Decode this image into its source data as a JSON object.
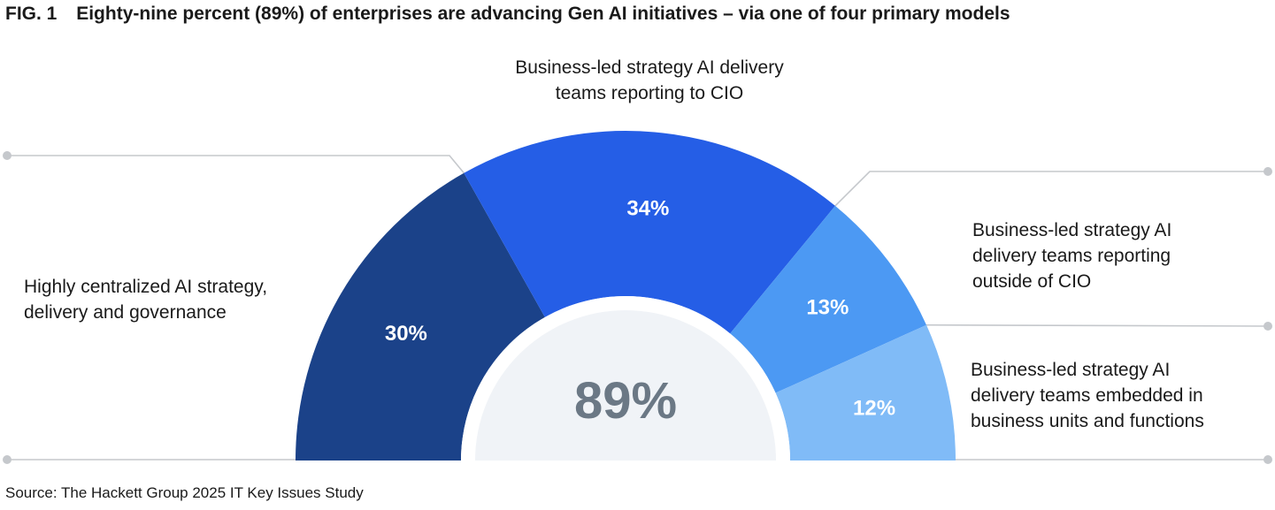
{
  "figure": {
    "title_prefix": "FIG. 1",
    "title_text": "Eighty-nine percent (89%) of enterprises are advancing Gen AI initiatives – via one of four primary models",
    "source": "Source: The Hackett Group 2025 IT Key Issues Study"
  },
  "chart_data": {
    "type": "pie",
    "shape": "half-donut",
    "center_label": "89%",
    "categories": [
      "Highly centralized AI strategy, delivery and governance",
      "Business-led strategy AI delivery teams reporting to CIO",
      "Business-led strategy AI delivery teams reporting outside of CIO",
      "Business-led strategy AI delivery teams embedded in business units and functions"
    ],
    "values": [
      30,
      34,
      13,
      12
    ],
    "value_labels": [
      "30%",
      "34%",
      "13%",
      "12%"
    ],
    "colors": [
      "#1b4289",
      "#255ee6",
      "#4c99f3",
      "#80bbf7"
    ],
    "category_lines": [
      [
        "Highly centralized AI strategy,",
        "delivery and governance"
      ],
      [
        "Business-led strategy AI delivery",
        "teams reporting to CIO"
      ],
      [
        "Business-led strategy AI",
        "delivery teams reporting",
        "outside of CIO"
      ],
      [
        "Business-led strategy AI",
        "delivery teams embedded in",
        "business units and functions"
      ]
    ],
    "legend": "none",
    "grid": false
  }
}
